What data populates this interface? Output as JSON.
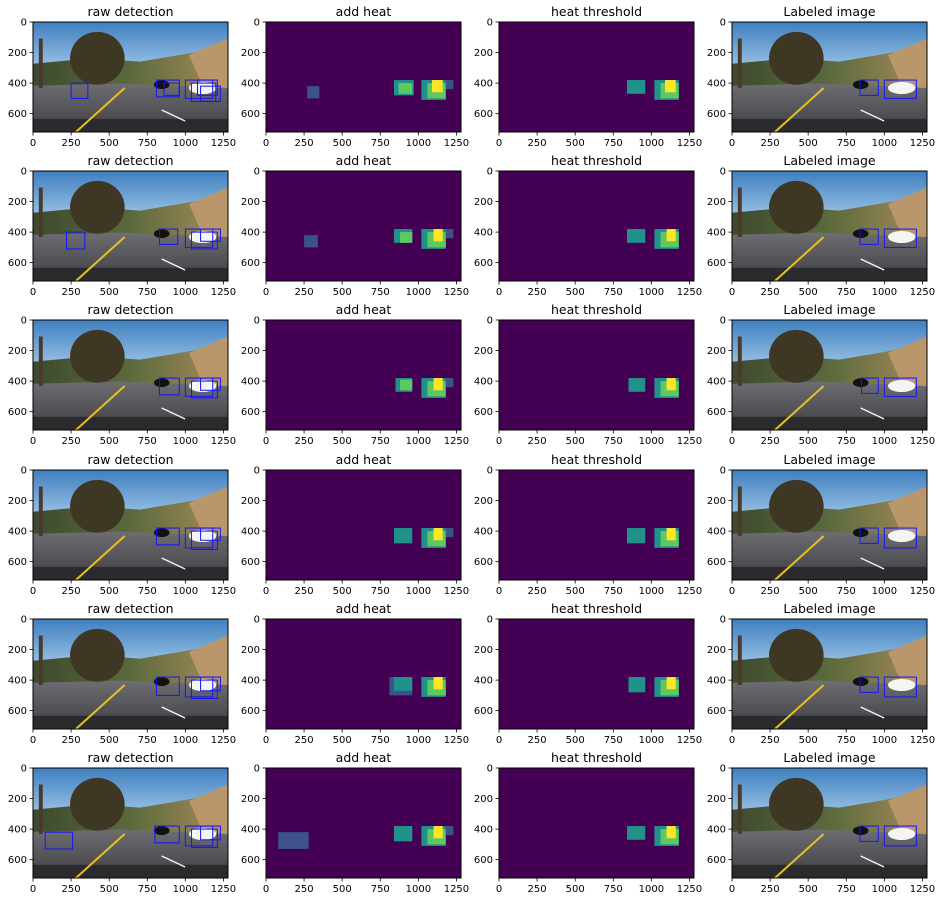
{
  "chart_data": {
    "type": "image-grid",
    "image_size": {
      "width": 1280,
      "height": 720
    },
    "panel_titles": [
      "raw detection",
      "add heat",
      "heat threshold",
      "Labeled image"
    ],
    "xaxis": {
      "ticks": [
        0,
        250,
        500,
        750,
        1000,
        1250
      ],
      "tick_labels": [
        "0",
        "250",
        "500",
        "750",
        "1000",
        "1250"
      ]
    },
    "yaxis": {
      "ticks": [
        0,
        200,
        400,
        600
      ],
      "tick_labels": [
        "0",
        "200",
        "400",
        "600"
      ]
    },
    "colormap": {
      "low": "#440154",
      "dim": "#3b528b",
      "mid": "#21918c",
      "high": "#5ec962",
      "max": "#fde725"
    },
    "frames": [
      {
        "raw_boxes": [
          [
            250,
            400,
            360,
            500
          ],
          [
            810,
            380,
            960,
            490
          ],
          [
            860,
            400,
            960,
            480
          ],
          [
            1000,
            380,
            1180,
            500
          ],
          [
            1040,
            400,
            1200,
            520
          ],
          [
            1080,
            380,
            1210,
            480
          ],
          [
            1100,
            420,
            1230,
            520
          ]
        ],
        "heat": [
          [
            270,
            420,
            350,
            500,
            1
          ],
          [
            840,
            380,
            970,
            480,
            2
          ],
          [
            870,
            400,
            960,
            470,
            3
          ],
          [
            1020,
            380,
            1180,
            510,
            2
          ],
          [
            1060,
            400,
            1180,
            500,
            3
          ],
          [
            1090,
            380,
            1160,
            460,
            4
          ],
          [
            1180,
            380,
            1230,
            440,
            1
          ]
        ],
        "thresh": [
          [
            840,
            380,
            960,
            470,
            2
          ],
          [
            1020,
            380,
            1180,
            510,
            2
          ],
          [
            1060,
            400,
            1180,
            500,
            3
          ],
          [
            1090,
            380,
            1160,
            460,
            4
          ]
        ],
        "labels": [
          [
            840,
            380,
            960,
            480
          ],
          [
            1000,
            380,
            1210,
            500
          ]
        ]
      },
      {
        "raw_boxes": [
          [
            220,
            400,
            340,
            510
          ],
          [
            830,
            380,
            950,
            480
          ],
          [
            1000,
            380,
            1180,
            500
          ],
          [
            1040,
            400,
            1210,
            510
          ],
          [
            1100,
            380,
            1230,
            460
          ]
        ],
        "heat": [
          [
            250,
            420,
            340,
            500,
            1
          ],
          [
            840,
            380,
            960,
            470,
            2
          ],
          [
            880,
            400,
            960,
            470,
            3
          ],
          [
            1020,
            380,
            1180,
            510,
            2
          ],
          [
            1060,
            400,
            1180,
            500,
            3
          ],
          [
            1100,
            380,
            1160,
            460,
            4
          ],
          [
            1180,
            380,
            1230,
            440,
            1
          ]
        ],
        "thresh": [
          [
            840,
            380,
            960,
            470,
            2
          ],
          [
            1020,
            380,
            1180,
            510,
            2
          ],
          [
            1060,
            400,
            1180,
            500,
            3
          ],
          [
            1100,
            380,
            1160,
            460,
            4
          ]
        ],
        "labels": [
          [
            840,
            380,
            960,
            480
          ],
          [
            1000,
            380,
            1210,
            500
          ]
        ]
      },
      {
        "raw_boxes": [
          [
            830,
            380,
            960,
            490
          ],
          [
            1000,
            380,
            1180,
            500
          ],
          [
            1040,
            400,
            1210,
            510
          ],
          [
            1100,
            380,
            1230,
            460
          ]
        ],
        "heat": [
          [
            850,
            380,
            960,
            470,
            2
          ],
          [
            880,
            390,
            960,
            460,
            3
          ],
          [
            1020,
            380,
            1180,
            510,
            2
          ],
          [
            1060,
            400,
            1180,
            500,
            3
          ],
          [
            1100,
            380,
            1160,
            460,
            4
          ],
          [
            1180,
            380,
            1230,
            440,
            1
          ]
        ],
        "thresh": [
          [
            850,
            380,
            960,
            470,
            2
          ],
          [
            1020,
            380,
            1180,
            510,
            2
          ],
          [
            1060,
            400,
            1180,
            500,
            3
          ],
          [
            1100,
            380,
            1160,
            460,
            4
          ]
        ],
        "labels": [
          [
            850,
            380,
            960,
            480
          ],
          [
            1000,
            380,
            1210,
            500
          ]
        ]
      },
      {
        "raw_boxes": [
          [
            810,
            380,
            960,
            490
          ],
          [
            1000,
            380,
            1180,
            510
          ],
          [
            1040,
            400,
            1210,
            520
          ],
          [
            1100,
            380,
            1230,
            460
          ]
        ],
        "heat": [
          [
            840,
            380,
            960,
            480,
            2
          ],
          [
            1020,
            380,
            1180,
            510,
            2
          ],
          [
            1060,
            400,
            1180,
            500,
            3
          ],
          [
            1100,
            380,
            1160,
            460,
            4
          ],
          [
            1180,
            380,
            1230,
            440,
            1
          ]
        ],
        "thresh": [
          [
            840,
            380,
            960,
            480,
            2
          ],
          [
            1020,
            380,
            1180,
            510,
            2
          ],
          [
            1060,
            400,
            1180,
            500,
            3
          ],
          [
            1100,
            380,
            1160,
            460,
            4
          ]
        ],
        "labels": [
          [
            840,
            380,
            960,
            480
          ],
          [
            1000,
            380,
            1210,
            510
          ]
        ]
      },
      {
        "raw_boxes": [
          [
            810,
            380,
            960,
            500
          ],
          [
            1000,
            380,
            1180,
            510
          ],
          [
            1040,
            400,
            1210,
            520
          ],
          [
            1100,
            380,
            1230,
            470
          ]
        ],
        "heat": [
          [
            810,
            380,
            960,
            500,
            1
          ],
          [
            840,
            380,
            960,
            470,
            2
          ],
          [
            1020,
            380,
            1180,
            510,
            2
          ],
          [
            1060,
            400,
            1180,
            500,
            3
          ],
          [
            1100,
            380,
            1160,
            460,
            4
          ]
        ],
        "thresh": [
          [
            850,
            380,
            960,
            480,
            2
          ],
          [
            1020,
            380,
            1180,
            510,
            2
          ],
          [
            1060,
            400,
            1180,
            500,
            3
          ],
          [
            1100,
            380,
            1160,
            460,
            4
          ]
        ],
        "labels": [
          [
            840,
            380,
            960,
            480
          ],
          [
            1000,
            380,
            1210,
            510
          ]
        ]
      },
      {
        "raw_boxes": [
          [
            80,
            420,
            260,
            530
          ],
          [
            800,
            380,
            960,
            490
          ],
          [
            1000,
            380,
            1180,
            510
          ],
          [
            1040,
            400,
            1210,
            520
          ],
          [
            1100,
            380,
            1230,
            470
          ]
        ],
        "heat": [
          [
            80,
            420,
            280,
            530,
            1
          ],
          [
            840,
            380,
            960,
            480,
            2
          ],
          [
            1020,
            380,
            1180,
            510,
            2
          ],
          [
            1060,
            400,
            1180,
            500,
            3
          ],
          [
            1100,
            380,
            1160,
            460,
            4
          ],
          [
            1180,
            380,
            1230,
            440,
            1
          ]
        ],
        "thresh": [
          [
            840,
            380,
            960,
            470,
            2
          ],
          [
            1020,
            380,
            1180,
            510,
            2
          ],
          [
            1060,
            400,
            1180,
            500,
            3
          ],
          [
            1100,
            380,
            1160,
            460,
            4
          ]
        ],
        "labels": [
          [
            840,
            380,
            960,
            480
          ],
          [
            1000,
            380,
            1210,
            510
          ]
        ]
      }
    ]
  }
}
